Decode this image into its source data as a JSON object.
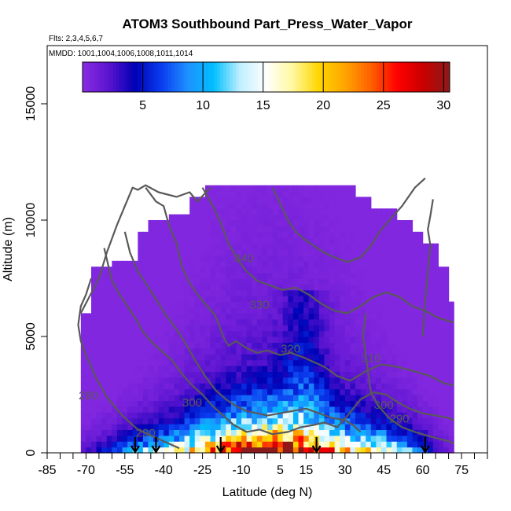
{
  "chart_data": {
    "type": "heatmap",
    "title": "ATOM3 Southbound Part_Press_Water_Vapor",
    "subtitle_flights": "Flts: 2,3,4,5,6,7",
    "subtitle_dates": "MMDD: 1001,1004,1006,1008,1011,1014",
    "xlabel": "Latitude (deg N)",
    "ylabel": "Altitude (m)",
    "xlim": [
      -85,
      85
    ],
    "ylim": [
      0,
      17500
    ],
    "x_ticks": [
      -85,
      -70,
      -55,
      -40,
      -25,
      -10,
      5,
      15,
      30,
      45,
      60,
      75
    ],
    "x_minor_ticks": [
      -80,
      -75,
      -65,
      -60,
      -50,
      -45,
      -35,
      -30,
      -20,
      -15,
      -5,
      0,
      10,
      20,
      25,
      35,
      40,
      50,
      55,
      65,
      70,
      80,
      85
    ],
    "y_ticks": [
      0,
      5000,
      10000,
      15000
    ],
    "colorbar": {
      "min": 0,
      "max": 30.5,
      "ticks": [
        5,
        10,
        15,
        20,
        25,
        30
      ],
      "colors": [
        "#8a2be2",
        "#5a14d0",
        "#0000b4",
        "#0a3cf0",
        "#1e90ff",
        "#00bfff",
        "#bfefff",
        "#ffffff",
        "#fff8a0",
        "#ffd700",
        "#ffa500",
        "#ff6000",
        "#ff0000",
        "#c80000",
        "#8b1a1a"
      ]
    },
    "contours": [
      {
        "label": "280",
        "lat": -69,
        "alt": 2300
      },
      {
        "label": "290",
        "lat": -47,
        "alt": 700
      },
      {
        "label": "300",
        "lat": -29,
        "alt": 2000
      },
      {
        "label": "300",
        "lat": 45,
        "alt": 1900
      },
      {
        "label": "290",
        "lat": 51,
        "alt": 1300
      },
      {
        "label": "310",
        "lat": 40,
        "alt": 3900
      },
      {
        "label": "320",
        "lat": 9,
        "alt": 4300
      },
      {
        "label": "330",
        "lat": -3,
        "alt": 6200
      },
      {
        "label": "340",
        "lat": -9,
        "alt": 8200
      }
    ],
    "profile_arrows_lat": [
      -51,
      -43,
      -18,
      19,
      61
    ]
  }
}
